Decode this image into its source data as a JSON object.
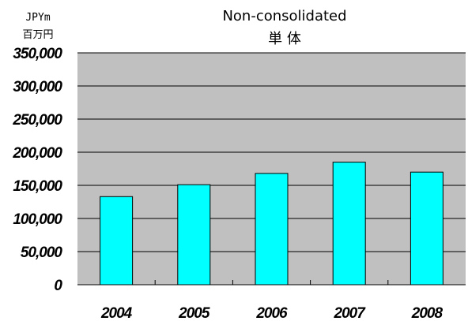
{
  "chart_data": {
    "type": "bar",
    "title": "Non-consolidated",
    "subtitle": "単 体",
    "unit_label_en": "JPYm",
    "unit_label_ja": "百万円",
    "categories": [
      "2004",
      "2005",
      "2006",
      "2007",
      "2008"
    ],
    "values": [
      133000,
      151000,
      168000,
      185000,
      170000
    ],
    "ylim": [
      0,
      350000
    ],
    "yticks": [
      0,
      50000,
      100000,
      150000,
      200000,
      250000,
      300000,
      350000
    ],
    "ytick_labels": [
      "0",
      "50,000",
      "100,000",
      "150,000",
      "200,000",
      "250,000",
      "300,000",
      "350,000"
    ],
    "grid": true,
    "colors": {
      "plot_background": "#c0c0c0",
      "bar_fill": "#00ffff",
      "bar_stroke": "#000000",
      "gridline": "#000000"
    }
  }
}
